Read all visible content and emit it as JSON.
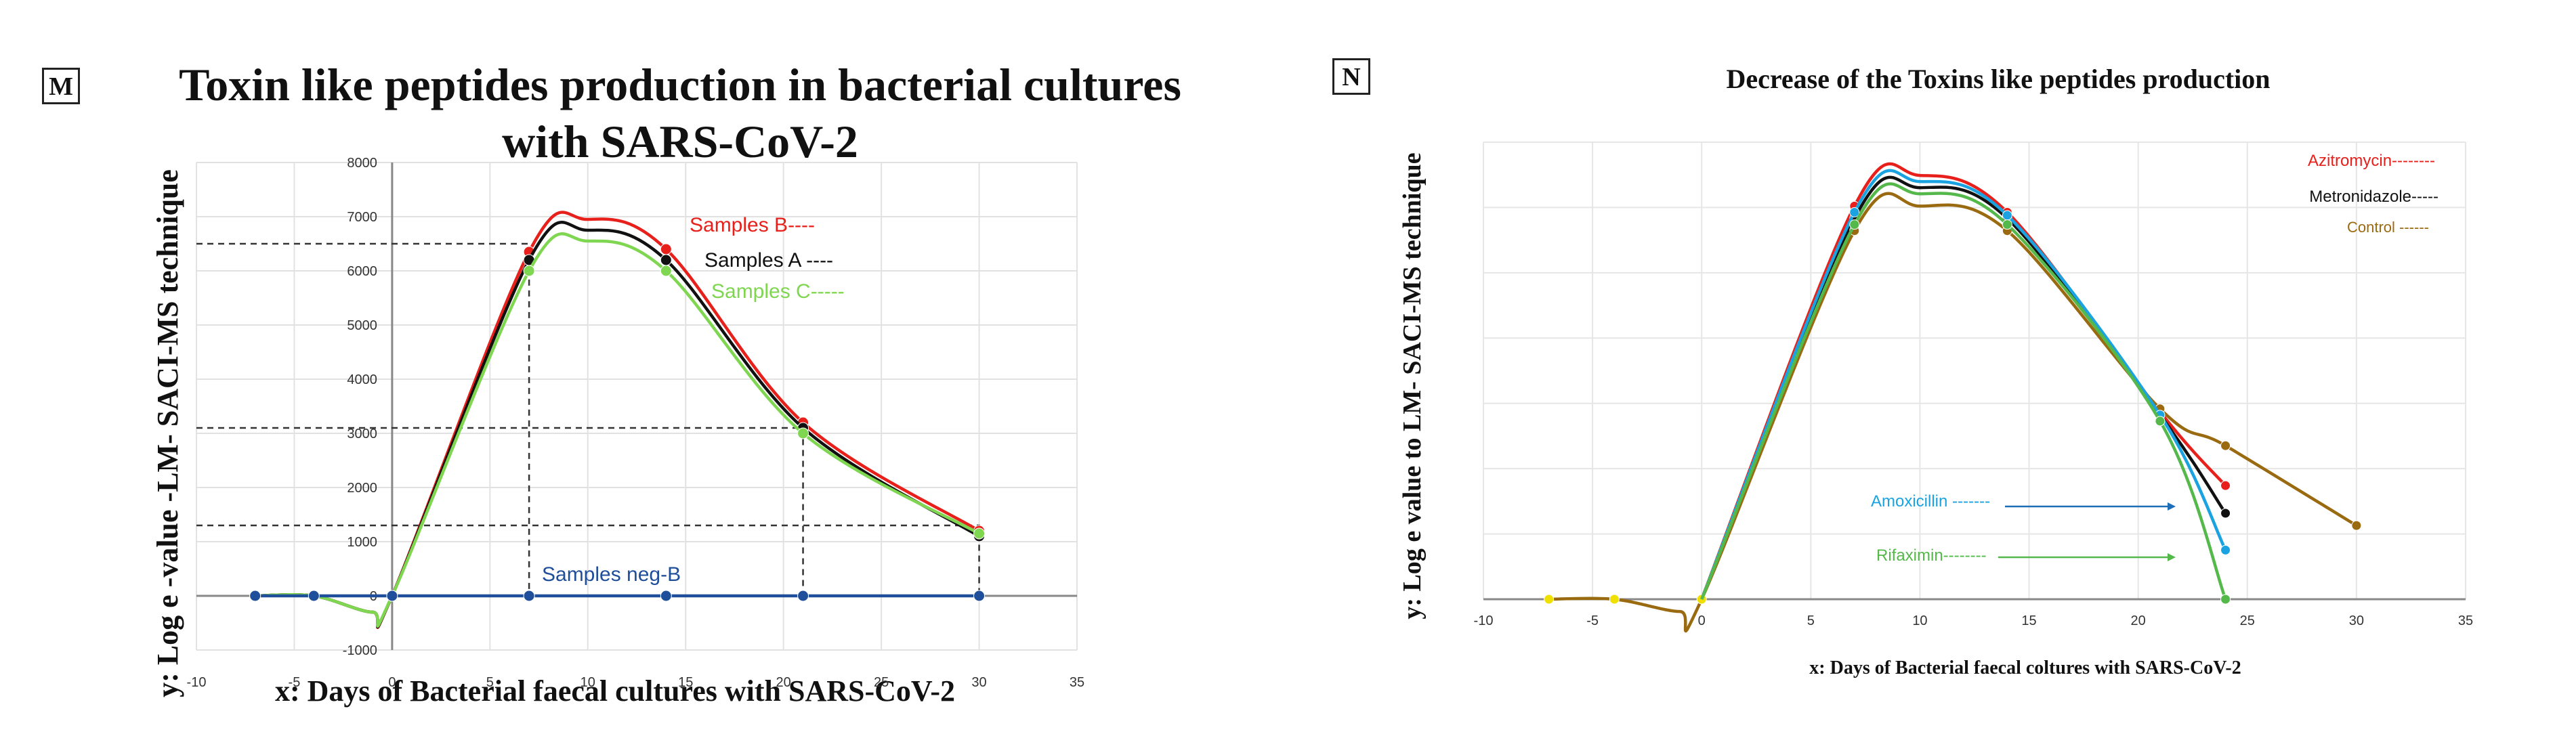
{
  "panels": {
    "left": {
      "tag": "M",
      "title_line1": "Toxin like peptides production in bacterial cultures",
      "title_line2": "with SARS-CoV-2",
      "xlabel": "x: Days of Bacterial faecal cultures with SARS-CoV-2",
      "ylabel": "y: Log e -value -LM- SACI-MS technique"
    },
    "right": {
      "tag": "N",
      "title": "Decrease of the Toxins like peptides production",
      "xlabel": "x: Days of Bacterial  faecal coltures with SARS-CoV-2",
      "ylabel": "y: Log e value to LM- SACI-MS technique"
    }
  },
  "chart_data": [
    {
      "type": "line",
      "title": "Toxin like peptides production in bacterial cultures with SARS-CoV-2",
      "xlabel": "x: Days of Bacterial faecal cultures with SARS-CoV-2",
      "ylabel": "y: Log e -value -LM- SACI-MS technique",
      "xlim": [
        -10,
        35
      ],
      "ylim": [
        -1000,
        8000
      ],
      "xticks": [
        -10,
        -5,
        0,
        5,
        10,
        15,
        20,
        25,
        30,
        35
      ],
      "yticks": [
        -1000,
        0,
        1000,
        2000,
        3000,
        4000,
        5000,
        6000,
        7000,
        8000
      ],
      "grid": true,
      "series": [
        {
          "name": "Samples B----",
          "color": "#e8201b",
          "x": [
            -7,
            -4,
            0,
            7,
            14,
            21,
            30
          ],
          "y": [
            0,
            0,
            0,
            6350,
            6400,
            3200,
            1200
          ]
        },
        {
          "name": "Samples A  ----",
          "color": "#111111",
          "x": [
            -7,
            -4,
            0,
            7,
            14,
            21,
            30
          ],
          "y": [
            0,
            0,
            0,
            6200,
            6200,
            3100,
            1100
          ]
        },
        {
          "name": "Samples C-----",
          "color": "#7fd650",
          "x": [
            -7,
            -4,
            0,
            7,
            14,
            21,
            30
          ],
          "y": [
            0,
            0,
            0,
            6000,
            6000,
            3000,
            1150
          ]
        },
        {
          "name": "Samples neg-B",
          "color": "#1f4e9a",
          "x": [
            -7,
            -4,
            0,
            7,
            14,
            21,
            30
          ],
          "y": [
            0,
            0,
            0,
            0,
            0,
            0,
            0
          ]
        }
      ],
      "reference_lines": [
        {
          "y": 6500,
          "x": 7
        },
        {
          "y": 3100,
          "x": 21
        },
        {
          "y": 1300,
          "x": 30
        }
      ]
    },
    {
      "type": "line",
      "title": "Decrease of the Toxins like peptides production",
      "xlabel": "x: Days of Bacterial  faecal coltures with SARS-CoV-2",
      "ylabel": "y: Log e value to LM- SACI-MS technique",
      "xlim": [
        -10,
        35
      ],
      "xticks": [
        -10,
        -5,
        0,
        5,
        10,
        15,
        20,
        25,
        30,
        35
      ],
      "grid": true,
      "series": [
        {
          "name": "Azitromycin--------",
          "color": "#e8201b",
          "x": [
            7,
            14,
            21,
            24
          ],
          "y": [
            6400,
            6300,
            3050,
            1850
          ]
        },
        {
          "name": "Metronidazole-----",
          "color": "#111111",
          "x": [
            7,
            14,
            21,
            24
          ],
          "y": [
            6200,
            6200,
            3000,
            1400
          ]
        },
        {
          "name": "Control ------",
          "color": "#9a6a10",
          "x": [
            -7,
            -4,
            0,
            7,
            14,
            21,
            24,
            30
          ],
          "y": [
            0,
            0,
            0,
            6000,
            6000,
            3100,
            2500,
            1200
          ]
        },
        {
          "name": "Amoxicillin -------",
          "color": "#1aa3e0",
          "x": [
            7,
            14,
            21,
            24
          ],
          "y": [
            6300,
            6250,
            3000,
            800
          ]
        },
        {
          "name": "Rifaximin--------",
          "color": "#55b84a",
          "x": [
            7,
            14,
            21,
            24
          ],
          "y": [
            6100,
            6100,
            2900,
            0
          ]
        }
      ]
    }
  ]
}
